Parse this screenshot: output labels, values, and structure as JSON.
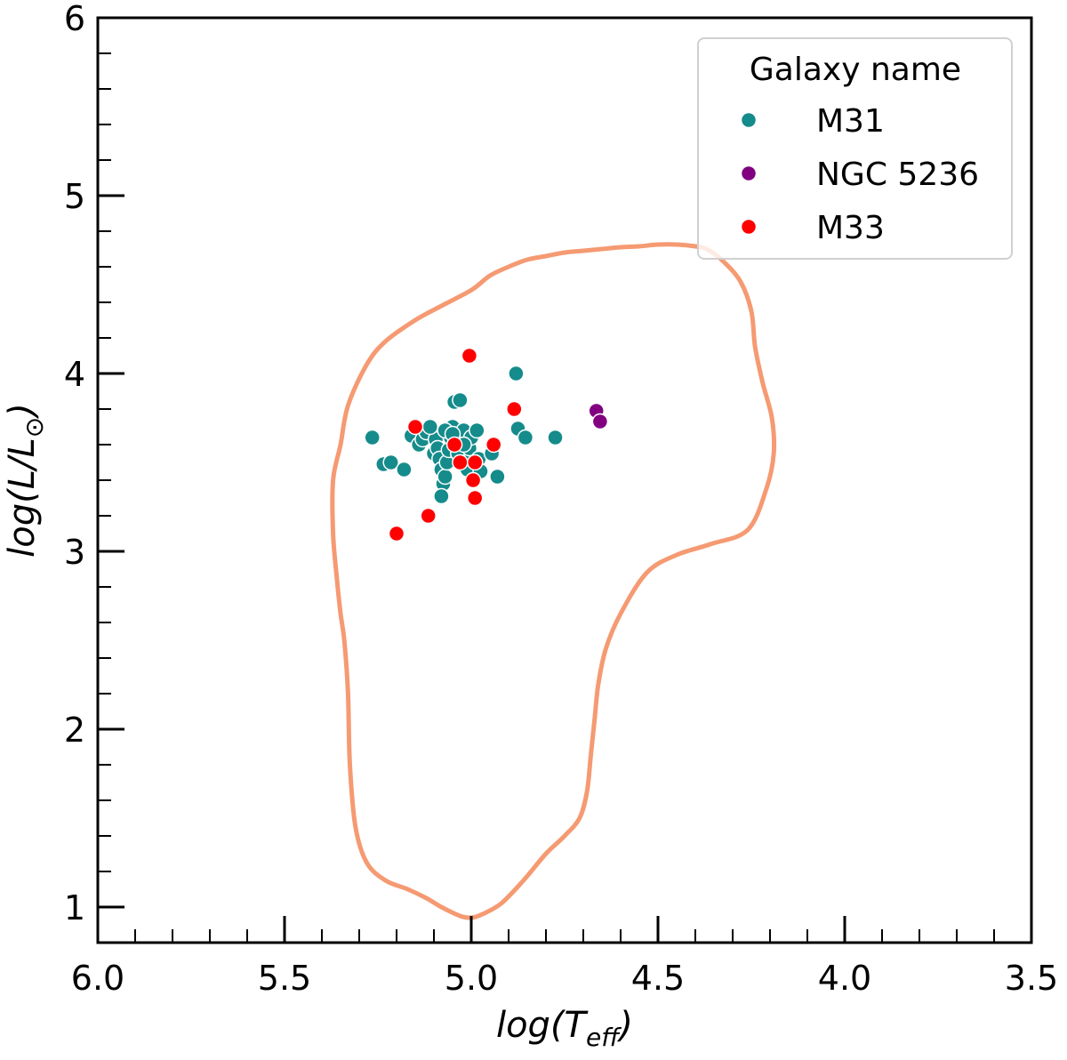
{
  "chart_data": {
    "type": "scatter",
    "xlabel": "log(T",
    "xlabel_sub": "eff",
    "xlabel_close": ")",
    "ylabel": "log(L/L",
    "ylabel_sun": "⊙",
    "ylabel_close": ")",
    "xlim": [
      6.0,
      3.5
    ],
    "ylim": [
      0.9,
      6.0
    ],
    "x_ticks": [
      6.0,
      5.5,
      5.0,
      4.5,
      4.0,
      3.5
    ],
    "x_tick_labels": [
      "6.0",
      "5.5",
      "5.0",
      "4.5",
      "4.0",
      "3.5"
    ],
    "y_ticks": [
      1,
      2,
      3,
      4,
      5,
      6
    ],
    "y_tick_labels": [
      "1",
      "2",
      "3",
      "4",
      "5",
      "6"
    ],
    "legend": {
      "title": "Galaxy name",
      "position": "top-right",
      "entries": [
        "M31",
        "NGC 5236",
        "M33"
      ]
    },
    "series": [
      {
        "name": "M31",
        "color": "#158b8b",
        "points": [
          [
            5.265,
            3.64
          ],
          [
            5.235,
            3.49
          ],
          [
            5.215,
            3.5
          ],
          [
            5.18,
            3.46
          ],
          [
            5.16,
            3.65
          ],
          [
            5.14,
            3.6
          ],
          [
            5.13,
            3.63
          ],
          [
            5.12,
            3.67
          ],
          [
            5.1,
            3.55
          ],
          [
            5.095,
            3.63
          ],
          [
            5.09,
            3.58
          ],
          [
            5.085,
            3.52
          ],
          [
            5.08,
            3.46
          ],
          [
            5.075,
            3.38
          ],
          [
            5.08,
            3.31
          ],
          [
            5.07,
            3.42
          ],
          [
            5.065,
            3.5
          ],
          [
            5.06,
            3.57
          ],
          [
            5.055,
            3.64
          ],
          [
            5.05,
            3.7
          ],
          [
            5.045,
            3.84
          ],
          [
            5.04,
            3.6
          ],
          [
            5.035,
            3.55
          ],
          [
            5.03,
            3.85
          ],
          [
            5.025,
            3.63
          ],
          [
            5.02,
            3.68
          ],
          [
            5.015,
            3.5
          ],
          [
            5.01,
            3.46
          ],
          [
            5.005,
            3.58
          ],
          [
            5.0,
            3.64
          ],
          [
            4.985,
            3.68
          ],
          [
            4.98,
            3.52
          ],
          [
            4.975,
            3.45
          ],
          [
            4.945,
            3.55
          ],
          [
            4.93,
            3.42
          ],
          [
            4.88,
            4.0
          ],
          [
            4.875,
            3.69
          ],
          [
            4.855,
            3.64
          ],
          [
            4.775,
            3.64
          ],
          [
            5.11,
            3.7
          ],
          [
            5.07,
            3.68
          ],
          [
            5.05,
            3.66
          ],
          [
            5.02,
            3.6
          ]
        ]
      },
      {
        "name": "NGC 5236",
        "color": "#800080",
        "points": [
          [
            4.665,
            3.79
          ],
          [
            4.655,
            3.73
          ]
        ]
      },
      {
        "name": "M33",
        "color": "#ff0000",
        "points": [
          [
            5.2,
            3.1
          ],
          [
            5.15,
            3.7
          ],
          [
            5.115,
            3.2
          ],
          [
            5.045,
            3.6
          ],
          [
            5.03,
            3.5
          ],
          [
            5.005,
            4.1
          ],
          [
            4.995,
            3.4
          ],
          [
            4.99,
            3.3
          ],
          [
            4.99,
            3.5
          ],
          [
            4.94,
            3.6
          ],
          [
            4.885,
            3.8
          ]
        ]
      }
    ],
    "contour": {
      "color": "#f59a72",
      "points": [
        [
          4.999,
          4.47
        ],
        [
          4.95,
          4.55
        ],
        [
          4.9,
          4.6
        ],
        [
          4.85,
          4.64
        ],
        [
          4.8,
          4.66
        ],
        [
          4.75,
          4.68
        ],
        [
          4.7,
          4.69
        ],
        [
          4.65,
          4.7
        ],
        [
          4.6,
          4.71
        ],
        [
          4.55,
          4.715
        ],
        [
          4.5,
          4.725
        ],
        [
          4.45,
          4.725
        ],
        [
          4.4,
          4.715
        ],
        [
          4.37,
          4.7
        ],
        [
          4.33,
          4.64
        ],
        [
          4.28,
          4.52
        ],
        [
          4.25,
          4.35
        ],
        [
          4.24,
          4.15
        ],
        [
          4.22,
          3.95
        ],
        [
          4.195,
          3.75
        ],
        [
          4.19,
          3.55
        ],
        [
          4.21,
          3.35
        ],
        [
          4.26,
          3.12
        ],
        [
          4.36,
          3.04
        ],
        [
          4.45,
          2.98
        ],
        [
          4.53,
          2.88
        ],
        [
          4.6,
          2.65
        ],
        [
          4.64,
          2.45
        ],
        [
          4.66,
          2.25
        ],
        [
          4.67,
          2.05
        ],
        [
          4.68,
          1.85
        ],
        [
          4.69,
          1.65
        ],
        [
          4.71,
          1.5
        ],
        [
          4.75,
          1.4
        ],
        [
          4.8,
          1.3
        ],
        [
          4.86,
          1.15
        ],
        [
          4.92,
          1.02
        ],
        [
          4.97,
          0.96
        ],
        [
          5.0,
          0.94
        ],
        [
          5.03,
          0.95
        ],
        [
          5.08,
          1.0
        ],
        [
          5.12,
          1.05
        ],
        [
          5.17,
          1.1
        ],
        [
          5.23,
          1.15
        ],
        [
          5.28,
          1.25
        ],
        [
          5.31,
          1.45
        ],
        [
          5.325,
          1.8
        ],
        [
          5.33,
          2.2
        ],
        [
          5.34,
          2.5
        ],
        [
          5.35,
          2.65
        ],
        [
          5.36,
          2.85
        ],
        [
          5.37,
          3.1
        ],
        [
          5.37,
          3.4
        ],
        [
          5.35,
          3.6
        ],
        [
          5.33,
          3.82
        ],
        [
          5.28,
          4.05
        ],
        [
          5.23,
          4.18
        ],
        [
          5.15,
          4.3
        ],
        [
          5.08,
          4.38
        ],
        [
          4.999,
          4.47
        ]
      ]
    }
  }
}
